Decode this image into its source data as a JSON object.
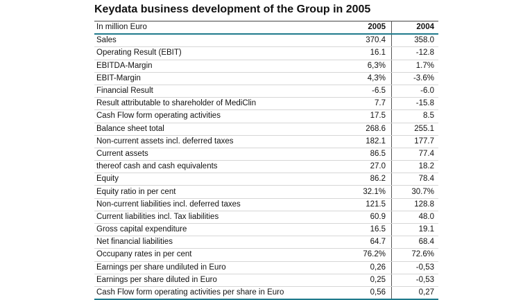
{
  "title": "Keydata business development of the Group in 2005",
  "table": {
    "header": {
      "label": "In million Euro",
      "col_2005": "2005",
      "col_2004": "2004"
    },
    "rows": [
      {
        "label": "Sales",
        "y2005": "370.4",
        "y2004": "358.0"
      },
      {
        "label": "Operating Result (EBIT)",
        "y2005": "16.1",
        "y2004": "-12.8"
      },
      {
        "label": "EBITDA-Margin",
        "y2005": "6,3%",
        "y2004": "1.7%"
      },
      {
        "label": "EBIT-Margin",
        "y2005": "4,3%",
        "y2004": "-3.6%"
      },
      {
        "label": "Financial Result",
        "y2005": "-6.5",
        "y2004": "-6.0"
      },
      {
        "label": "Result attributable to shareholder of MediClin",
        "y2005": "7.7",
        "y2004": "-15.8"
      },
      {
        "label": "Cash Flow form operating activities",
        "y2005": "17.5",
        "y2004": "8.5"
      },
      {
        "label": "Balance sheet total",
        "y2005": "268.6",
        "y2004": "255.1"
      },
      {
        "label": "Non-current assets incl. deferred taxes",
        "y2005": "182.1",
        "y2004": "177.7"
      },
      {
        "label": "Current assets",
        "y2005": "86.5",
        "y2004": "77.4"
      },
      {
        "label": "thereof cash and cash equivalents",
        "y2005": "27.0",
        "y2004": "18.2"
      },
      {
        "label": "Equity",
        "y2005": "86.2",
        "y2004": "78.4"
      },
      {
        "label": "Equity ratio in per cent",
        "y2005": "32.1%",
        "y2004": "30.7%"
      },
      {
        "label": "Non-current liabilities incl. deferred taxes",
        "y2005": "121.5",
        "y2004": "128.8"
      },
      {
        "label": "Current liabilities incl. Tax liabilities",
        "y2005": "60.9",
        "y2004": "48.0"
      },
      {
        "label": "Gross capital expenditure",
        "y2005": "16.5",
        "y2004": "19.1"
      },
      {
        "label": "Net financial liabilities",
        "y2005": "64.7",
        "y2004": "68.4"
      },
      {
        "label": "Occupany rates in per cent",
        "y2005": "76.2%",
        "y2004": "72.6%"
      },
      {
        "label": "Earnings per share undiluted in Euro",
        "y2005": "0,26",
        "y2004": "-0,53"
      },
      {
        "label": "Earnings per share diluted in Euro",
        "y2005": "0,25",
        "y2004": "-0,53"
      },
      {
        "label": "Cash Flow form operating activities per share in Euro",
        "y2005": "0,56",
        "y2004": "0,27"
      }
    ]
  }
}
